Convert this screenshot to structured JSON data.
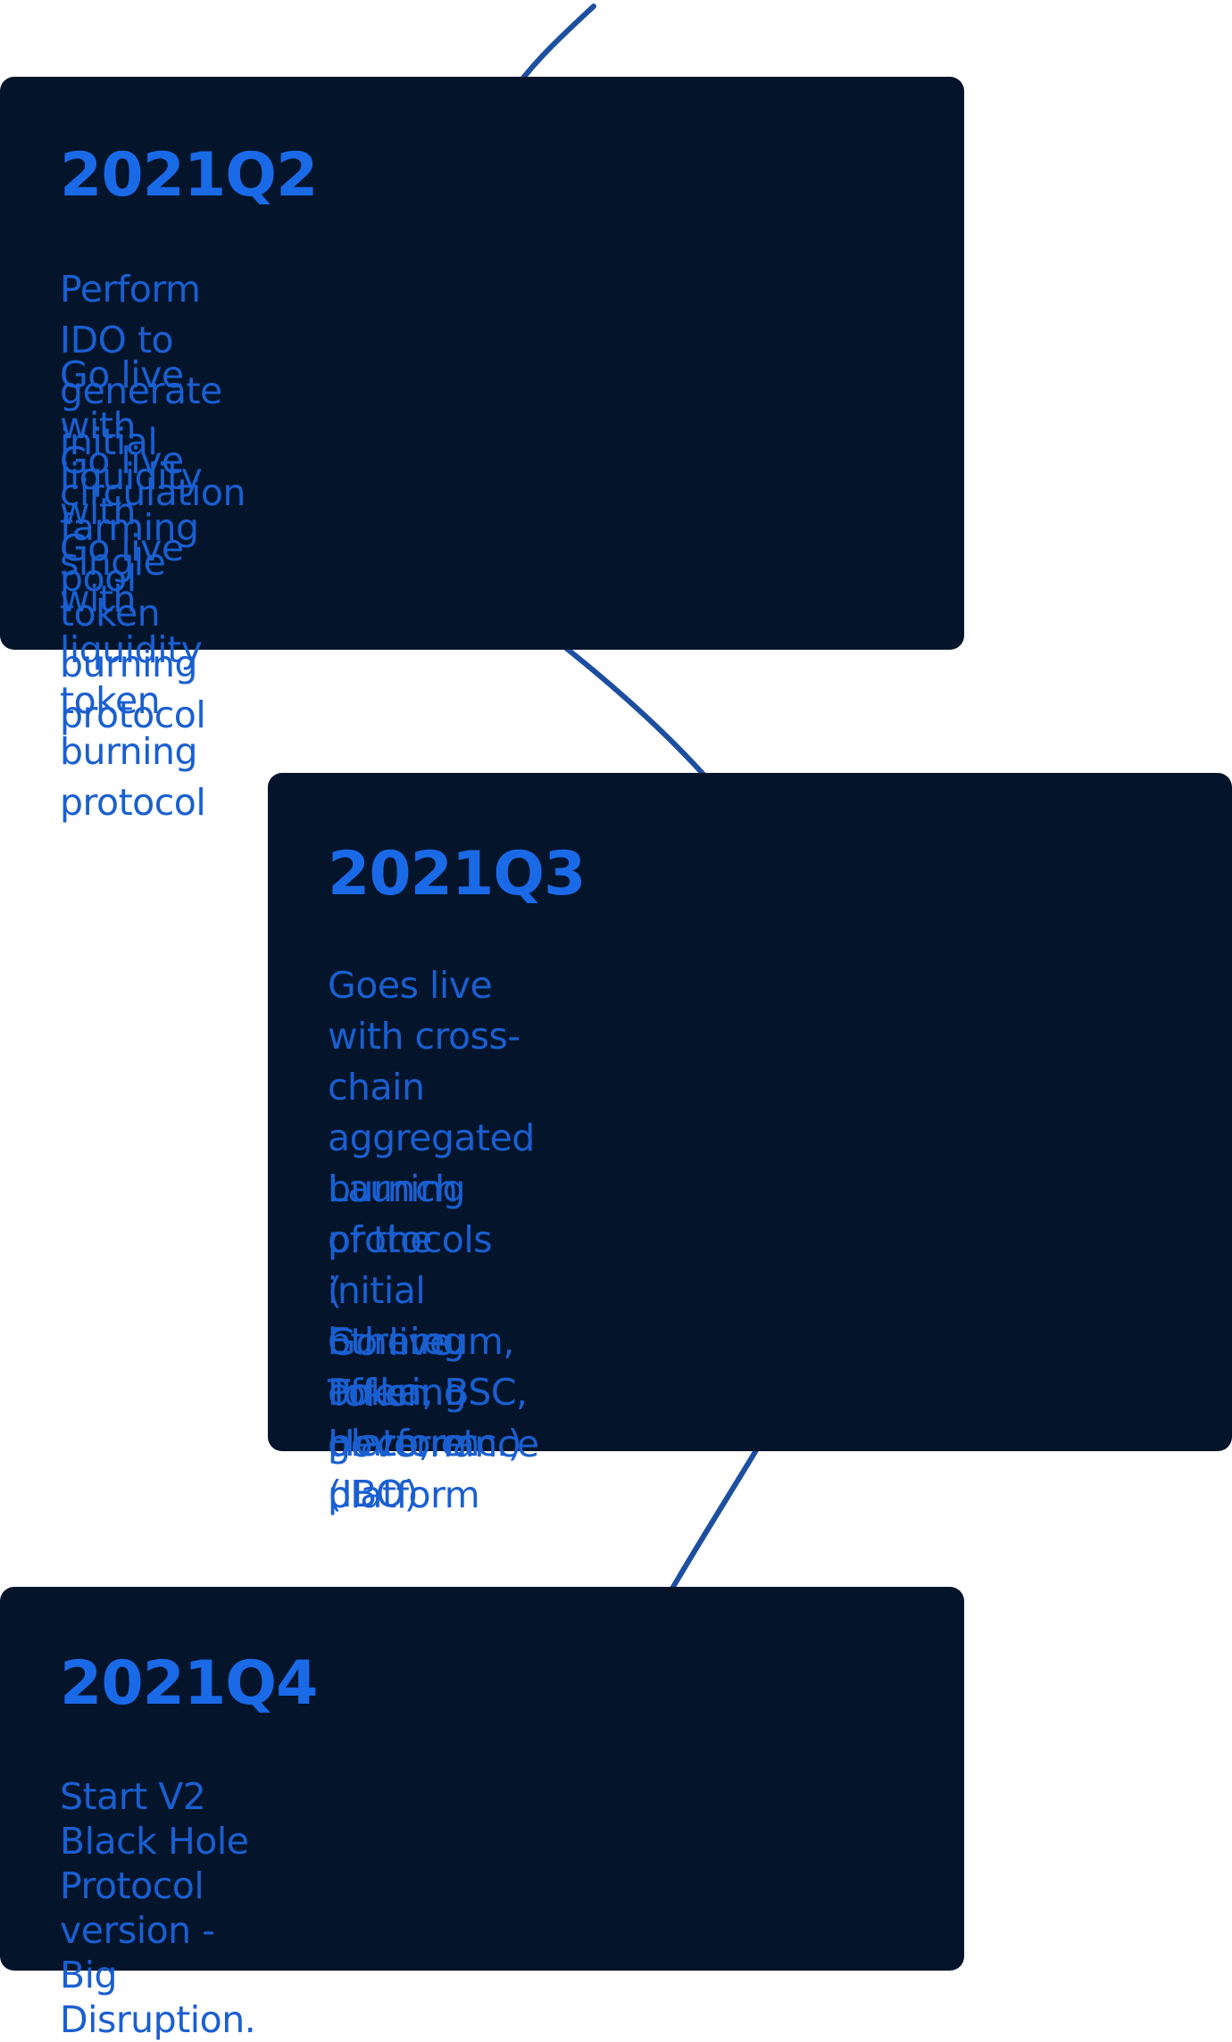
{
  "roadmap": {
    "cards": [
      {
        "title": "2021Q2",
        "items": [
          "Perform IDO to generate initial circulation",
          "Go live with liquidity farming pool",
          "Go live with single token burning protocol",
          "Go live with liquidity token burning protocol"
        ]
      },
      {
        "title": "2021Q3",
        "items": [
          "Goes live with cross-chain aggregated\nburning protocols\n ( Ethereum, Polka, BSC, Heco, etc.)",
          "Launch of the initial burning offering\nplatform (IBO)",
          "Go live Token governance platform"
        ]
      },
      {
        "title": "2021Q4",
        "items": [
          "Start V2 Black Hole Protocol version - Big\nDisruption."
        ]
      }
    ],
    "colors": {
      "card_background": "#03142b",
      "title": "#1a6ae8",
      "item_text": "#1a5fd0",
      "connector": "#1d4fa0",
      "page_background": "#ffffff"
    }
  }
}
